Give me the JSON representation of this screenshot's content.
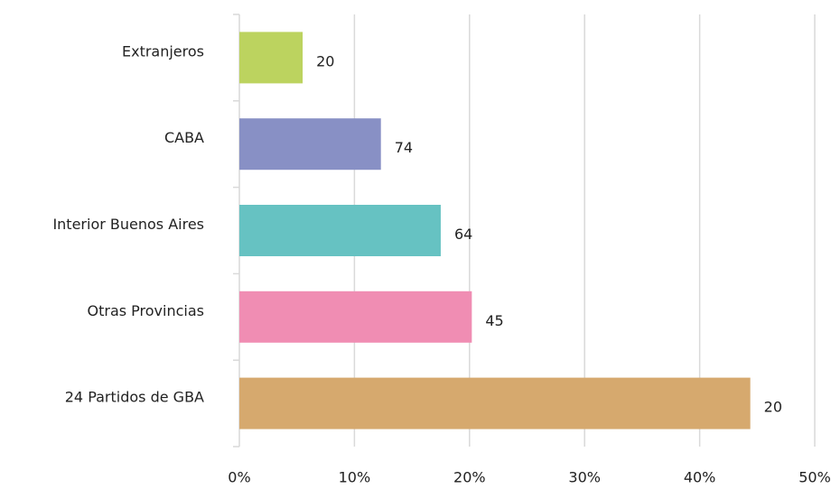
{
  "chart_data": {
    "type": "bar",
    "orientation": "horizontal",
    "categories": [
      "Extranjeros",
      "CABA",
      "Interior Buenos Aires",
      "Otras Provincias",
      "24 Partidos de GBA"
    ],
    "values": [
      5.5,
      12.3,
      17.5,
      20.2,
      44.4
    ],
    "data_labels": [
      "20",
      "74",
      "64",
      "45",
      "20"
    ],
    "colors": [
      "#bcd35f",
      "#8890c5",
      "#66c2c2",
      "#f08db3",
      "#d6a96e"
    ],
    "xlim": [
      0,
      50
    ],
    "xticks": [
      {
        "value": 0,
        "label": "0%"
      },
      {
        "value": 10,
        "label": "10%"
      },
      {
        "value": 20,
        "label": "20%"
      },
      {
        "value": 30,
        "label": "30%"
      },
      {
        "value": 40,
        "label": "40%"
      },
      {
        "value": 50,
        "label": "50%"
      }
    ],
    "grid": true
  }
}
